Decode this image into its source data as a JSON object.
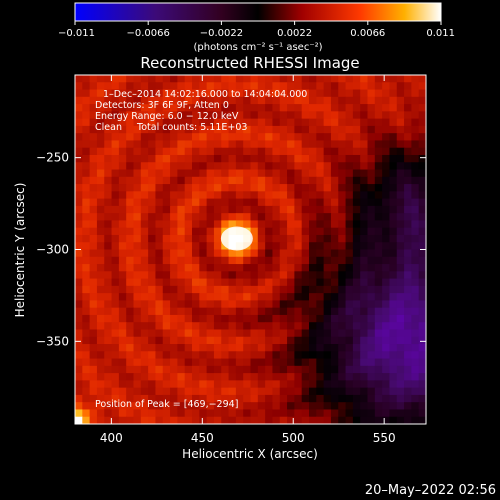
{
  "chart_data": {
    "type": "heatmap",
    "title": "Reconstructed RHESSI Image",
    "xlabel": "Heliocentric X (arcsec)",
    "ylabel": "Heliocentric Y (arcsec)",
    "xlim": [
      380,
      573
    ],
    "ylim": [
      -395,
      -205
    ],
    "x_ticks": [
      400,
      450,
      500,
      550
    ],
    "x_tick_labels": [
      "400",
      "450",
      "500",
      "550"
    ],
    "y_ticks": [
      -250,
      -300,
      -350
    ],
    "y_tick_labels": [
      "−250",
      "−300",
      "−350"
    ],
    "colorbar": {
      "range": [
        -0.011,
        0.011
      ],
      "ticks": [
        -0.011,
        -0.0066,
        -0.0022,
        0.0022,
        0.0066,
        0.011
      ],
      "tick_labels": [
        "−0.011",
        "−0.0066",
        "−0.0022",
        "0.0022",
        "0.0066",
        "0.011"
      ],
      "units_label": "(photons cm⁻² s⁻¹ asec⁻²)",
      "colormap": "red-temperature"
    },
    "annotations": [
      "1–Dec–2014 14:02:16.000 to 14:04:04.000",
      "Detectors: 3F 6F 9F, Atten 0",
      "Energy Range: 6.0 − 12.0 keV",
      "Clean     Total counts: 5.11E+03"
    ],
    "peak_label": "Position of Peak = [469,−294]",
    "peak": [
      469,
      -294
    ],
    "grid": false
  },
  "footer_date": "20–May–2022 02:56"
}
